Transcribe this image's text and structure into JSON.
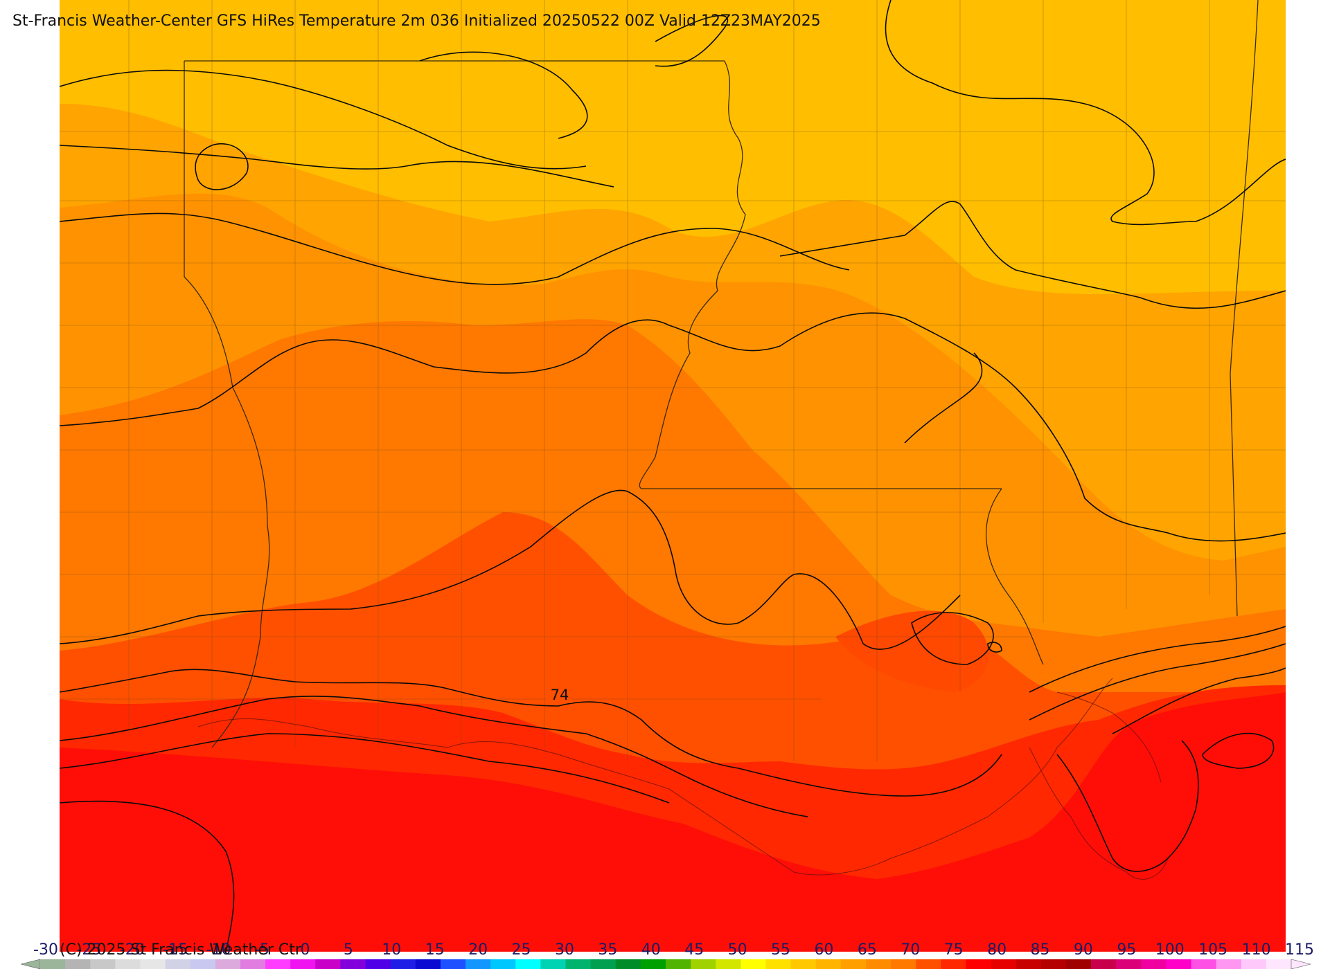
{
  "title": "St-Francis Weather-Center GFS HiRes Temperature 2m  036 Initialized 20250522 00Z Valid 12Z23MAY2025",
  "copyright": "(C) 2025 St Francis Weather Ctr",
  "contour_label": "74",
  "colorbar": {
    "labels": [
      "-30",
      "-25",
      "-20",
      "-15",
      "-10",
      "-5",
      "0",
      "5",
      "10",
      "15",
      "20",
      "25",
      "30",
      "35",
      "40",
      "45",
      "50",
      "55",
      "60",
      "65",
      "70",
      "75",
      "80",
      "85",
      "90",
      "95",
      "100",
      "105",
      "110",
      "115"
    ],
    "colors": [
      "#9bb59b",
      "#b4b4b4",
      "#c8c8c8",
      "#dcdcdc",
      "#e6e6e6",
      "#d2d2e6",
      "#c8c8f0",
      "#dcaadc",
      "#e17de1",
      "#ff3cff",
      "#f014f0",
      "#c800c8",
      "#8200dc",
      "#5000e6",
      "#1e1ee6",
      "#0a0ad2",
      "#1e50ff",
      "#1496ff",
      "#00c8ff",
      "#00ffff",
      "#00d2b4",
      "#00b46e",
      "#00a050",
      "#008c28",
      "#00a000",
      "#50b400",
      "#a0d200",
      "#d2e600",
      "#ffff00",
      "#ffe100",
      "#ffc800",
      "#ffb400",
      "#ffa000",
      "#ff8c00",
      "#ff7800",
      "#ff5000",
      "#ff2800",
      "#ff0000",
      "#e60000",
      "#c80000",
      "#b40000",
      "#a00000",
      "#c8004b",
      "#dc0078",
      "#f000a0",
      "#ff00c8",
      "#ff50e6",
      "#ff96f0",
      "#ffc8fa",
      "#ffe6ff"
    ]
  }
}
